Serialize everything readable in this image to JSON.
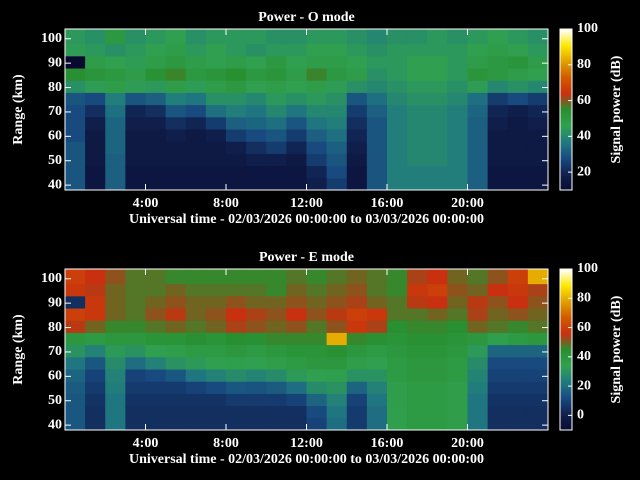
{
  "chart_data": [
    {
      "type": "heatmap",
      "title": "Power - O mode",
      "ylabel": "Range (km)",
      "xlabel": "Universal time - 02/03/2026 00:00:00 to 03/03/2026 00:00:00",
      "colorbar_label": "Signal power (dB)",
      "xlim": [
        0,
        24
      ],
      "ylim": [
        38,
        104
      ],
      "xticks": [
        {
          "value": 4,
          "label": "4:00"
        },
        {
          "value": 8,
          "label": "8:00"
        },
        {
          "value": 12,
          "label": "12:00"
        },
        {
          "value": 16,
          "label": "16:00"
        },
        {
          "value": 20,
          "label": "20:00"
        }
      ],
      "yticks": [
        40,
        50,
        60,
        70,
        80,
        90,
        100
      ],
      "clim": [
        10,
        100
      ],
      "cticks": [
        20,
        40,
        60,
        80,
        100
      ],
      "colormap": [
        "#0a0a30",
        "#10204e",
        "#184a80",
        "#207a80",
        "#30a050",
        "#289030",
        "#c83010",
        "#d05a00",
        "#e0a000",
        "#ffe800",
        "#ffffff"
      ],
      "xbins": [
        0,
        1,
        2,
        3,
        4,
        5,
        6,
        7,
        8,
        9,
        10,
        11,
        12,
        13,
        14,
        15,
        16,
        17,
        18,
        19,
        20,
        21,
        22,
        23,
        24
      ],
      "ybins": [
        38,
        43,
        48,
        53,
        58,
        63,
        68,
        73,
        78,
        83,
        88,
        93,
        98,
        104
      ],
      "z": [
        [
          30,
          15,
          32,
          15,
          15,
          15,
          15,
          15,
          15,
          15,
          15,
          15,
          18,
          25,
          15,
          30,
          38,
          38,
          38,
          38,
          32,
          15,
          15,
          15
        ],
        [
          30,
          15,
          32,
          15,
          15,
          15,
          15,
          15,
          15,
          15,
          15,
          15,
          20,
          28,
          15,
          30,
          38,
          38,
          38,
          38,
          32,
          15,
          15,
          15
        ],
        [
          30,
          16,
          32,
          16,
          16,
          16,
          16,
          16,
          16,
          18,
          18,
          16,
          25,
          30,
          16,
          30,
          38,
          40,
          40,
          38,
          32,
          16,
          16,
          16
        ],
        [
          30,
          16,
          33,
          16,
          16,
          16,
          16,
          16,
          18,
          22,
          25,
          20,
          28,
          32,
          18,
          30,
          38,
          40,
          40,
          38,
          32,
          16,
          16,
          16
        ],
        [
          28,
          16,
          33,
          16,
          16,
          18,
          16,
          18,
          25,
          28,
          30,
          25,
          32,
          35,
          20,
          30,
          38,
          40,
          40,
          38,
          32,
          16,
          16,
          16
        ],
        [
          28,
          18,
          33,
          18,
          18,
          22,
          20,
          25,
          32,
          33,
          35,
          30,
          36,
          38,
          22,
          30,
          38,
          40,
          40,
          38,
          32,
          18,
          16,
          18
        ],
        [
          28,
          22,
          35,
          20,
          22,
          30,
          28,
          35,
          38,
          36,
          40,
          36,
          40,
          40,
          25,
          32,
          38,
          40,
          40,
          38,
          33,
          20,
          18,
          20
        ],
        [
          30,
          28,
          38,
          30,
          32,
          38,
          36,
          42,
          42,
          40,
          44,
          42,
          44,
          42,
          30,
          35,
          40,
          42,
          42,
          40,
          35,
          25,
          28,
          25
        ],
        [
          42,
          45,
          48,
          45,
          44,
          48,
          45,
          48,
          50,
          46,
          48,
          46,
          48,
          45,
          42,
          40,
          42,
          44,
          44,
          42,
          45,
          40,
          42,
          40
        ],
        [
          55,
          52,
          50,
          48,
          54,
          56,
          50,
          52,
          55,
          50,
          52,
          48,
          56,
          50,
          48,
          42,
          44,
          46,
          46,
          44,
          52,
          50,
          48,
          46
        ],
        [
          10,
          48,
          46,
          45,
          48,
          50,
          48,
          46,
          48,
          46,
          50,
          46,
          48,
          48,
          46,
          44,
          44,
          46,
          46,
          44,
          48,
          50,
          52,
          48
        ],
        [
          45,
          44,
          42,
          44,
          46,
          48,
          44,
          46,
          44,
          42,
          44,
          44,
          46,
          46,
          44,
          42,
          44,
          44,
          44,
          44,
          46,
          48,
          46,
          44
        ],
        [
          44,
          42,
          50,
          42,
          44,
          46,
          42,
          44,
          44,
          44,
          42,
          42,
          44,
          44,
          42,
          40,
          42,
          42,
          44,
          42,
          44,
          46,
          44,
          42
        ]
      ]
    },
    {
      "type": "heatmap",
      "title": "Power - E mode",
      "ylabel": "Range (km)",
      "xlabel": "Universal time - 02/03/2026 00:00:00 to 03/03/2026 00:00:00",
      "colorbar_label": "Signal power (dB)",
      "xlim": [
        0,
        24
      ],
      "ylim": [
        38,
        104
      ],
      "xticks": [
        {
          "value": 4,
          "label": "4:00"
        },
        {
          "value": 8,
          "label": "8:00"
        },
        {
          "value": 12,
          "label": "12:00"
        },
        {
          "value": 16,
          "label": "16:00"
        },
        {
          "value": 20,
          "label": "20:00"
        }
      ],
      "yticks": [
        40,
        50,
        60,
        70,
        80,
        90,
        100
      ],
      "clim": [
        -10,
        100
      ],
      "cticks": [
        0,
        20,
        40,
        60,
        80,
        100
      ],
      "colormap": [
        "#0a0a30",
        "#10204e",
        "#184a80",
        "#207a80",
        "#30a050",
        "#289030",
        "#c83010",
        "#d05a00",
        "#e0a000",
        "#ffe800",
        "#ffffff"
      ],
      "xbins": [
        0,
        1,
        2,
        3,
        4,
        5,
        6,
        7,
        8,
        9,
        10,
        11,
        12,
        13,
        14,
        15,
        16,
        17,
        18,
        19,
        20,
        21,
        22,
        23,
        24
      ],
      "ybins": [
        38,
        43,
        48,
        53,
        58,
        63,
        68,
        73,
        78,
        83,
        88,
        93,
        98,
        104
      ],
      "z": [
        [
          15,
          5,
          22,
          5,
          5,
          5,
          5,
          5,
          5,
          5,
          5,
          5,
          10,
          20,
          8,
          20,
          35,
          38,
          38,
          36,
          22,
          5,
          5,
          5
        ],
        [
          15,
          5,
          22,
          5,
          5,
          5,
          5,
          5,
          5,
          5,
          5,
          5,
          12,
          22,
          8,
          20,
          35,
          38,
          38,
          36,
          22,
          5,
          5,
          5
        ],
        [
          15,
          6,
          22,
          6,
          6,
          6,
          6,
          6,
          8,
          8,
          8,
          10,
          18,
          25,
          10,
          22,
          36,
          38,
          38,
          36,
          22,
          6,
          6,
          6
        ],
        [
          16,
          8,
          24,
          8,
          8,
          8,
          10,
          12,
          15,
          14,
          16,
          20,
          28,
          30,
          18,
          25,
          36,
          38,
          38,
          36,
          24,
          8,
          8,
          8
        ],
        [
          18,
          10,
          25,
          10,
          12,
          15,
          22,
          25,
          28,
          26,
          28,
          32,
          34,
          35,
          30,
          30,
          38,
          40,
          40,
          38,
          26,
          10,
          10,
          10
        ],
        [
          22,
          15,
          28,
          20,
          25,
          30,
          32,
          34,
          35,
          34,
          36,
          38,
          40,
          40,
          36,
          34,
          38,
          40,
          40,
          38,
          28,
          12,
          12,
          12
        ],
        [
          30,
          25,
          32,
          30,
          34,
          36,
          38,
          38,
          40,
          38,
          40,
          42,
          42,
          44,
          40,
          38,
          40,
          42,
          42,
          40,
          32,
          18,
          18,
          18
        ],
        [
          40,
          38,
          40,
          40,
          42,
          42,
          44,
          42,
          45,
          44,
          46,
          46,
          46,
          80,
          46,
          44,
          42,
          44,
          44,
          42,
          40,
          35,
          38,
          40
        ],
        [
          55,
          50,
          46,
          46,
          48,
          50,
          48,
          50,
          54,
          52,
          50,
          52,
          48,
          52,
          58,
          54,
          45,
          46,
          46,
          45,
          50,
          48,
          46,
          48
        ],
        [
          60,
          58,
          50,
          48,
          52,
          55,
          50,
          52,
          56,
          54,
          52,
          56,
          52,
          55,
          60,
          58,
          48,
          48,
          50,
          48,
          54,
          50,
          52,
          50
        ],
        [
          5,
          58,
          50,
          48,
          50,
          52,
          50,
          50,
          52,
          50,
          50,
          52,
          50,
          52,
          54,
          50,
          48,
          55,
          56,
          50,
          55,
          52,
          56,
          52
        ],
        [
          58,
          55,
          50,
          48,
          48,
          50,
          48,
          48,
          48,
          48,
          46,
          50,
          48,
          50,
          52,
          48,
          46,
          58,
          60,
          52,
          50,
          56,
          58,
          54
        ],
        [
          60,
          56,
          52,
          48,
          48,
          46,
          46,
          46,
          46,
          46,
          46,
          48,
          46,
          48,
          50,
          48,
          46,
          54,
          56,
          50,
          48,
          52,
          60,
          80
        ]
      ]
    }
  ]
}
